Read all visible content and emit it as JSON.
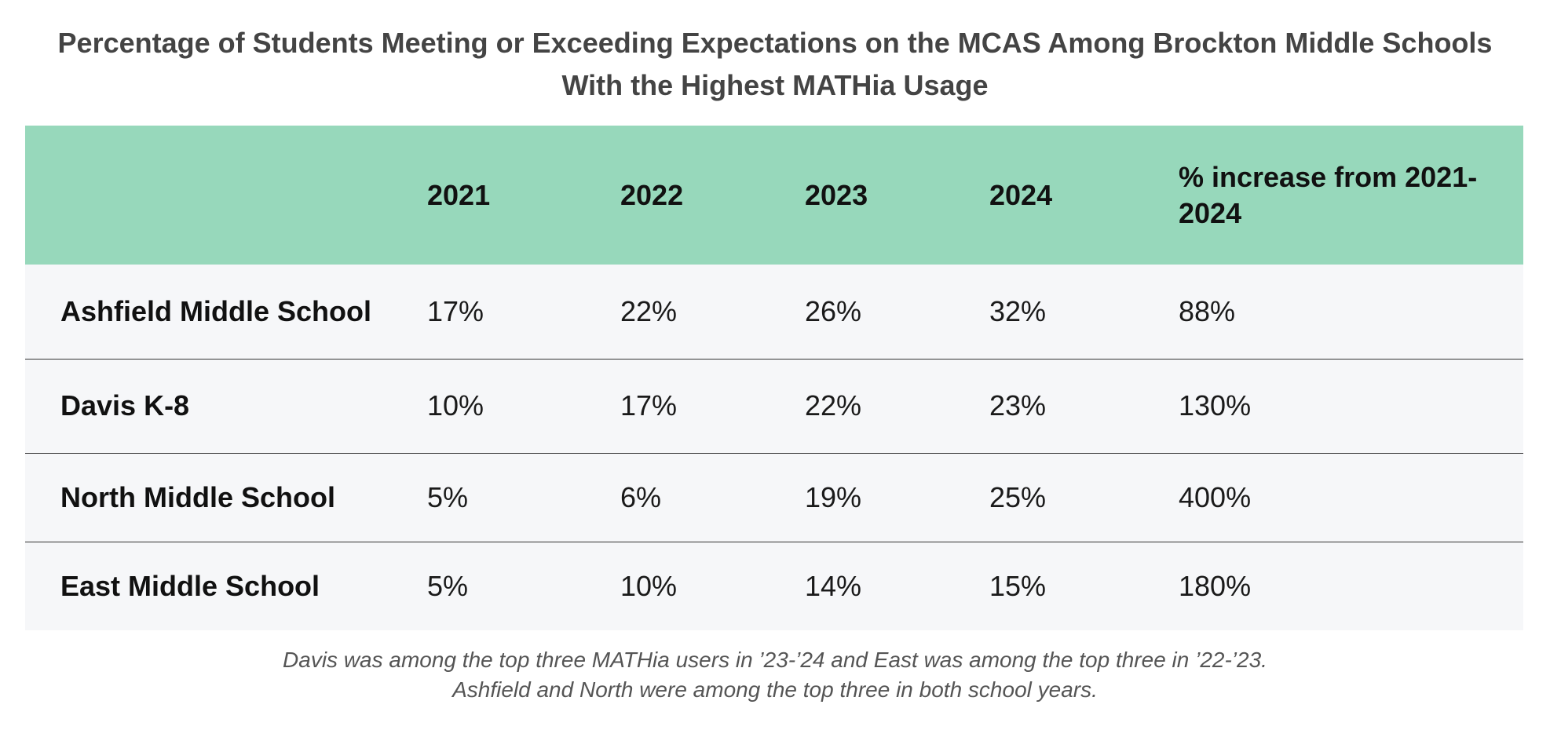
{
  "chart_data": {
    "type": "table",
    "title_lines": [
      "Percentage of Students Meeting or Exceeding Expectations on the MCAS Among Brockton Middle Schools",
      "With the Highest MATHia Usage"
    ],
    "columns": [
      "",
      "2021",
      "2022",
      "2023",
      "2024",
      "% increase from 2021-2024"
    ],
    "rows": [
      {
        "school": "Ashfield Middle School",
        "values": [
          "17%",
          "22%",
          "26%",
          "32%",
          "88%"
        ]
      },
      {
        "school": "Davis K-8",
        "values": [
          "10%",
          "17%",
          "22%",
          "23%",
          "130%"
        ]
      },
      {
        "school": "North Middle School",
        "values": [
          "5%",
          "6%",
          "19%",
          "25%",
          "400%"
        ]
      },
      {
        "school": "East Middle School",
        "values": [
          "5%",
          "10%",
          "14%",
          "15%",
          "180%"
        ]
      }
    ],
    "footnote_lines": [
      "Davis was among the top three MATHia users in ’23-’24 and East was among the top three in ’22-’23.",
      "Ashfield and North were among the top three in both school years."
    ]
  },
  "colors": {
    "header_background": "#97d8bb",
    "row_background": "#f6f7f9",
    "title_text": "#444444",
    "note_text": "#555555"
  }
}
